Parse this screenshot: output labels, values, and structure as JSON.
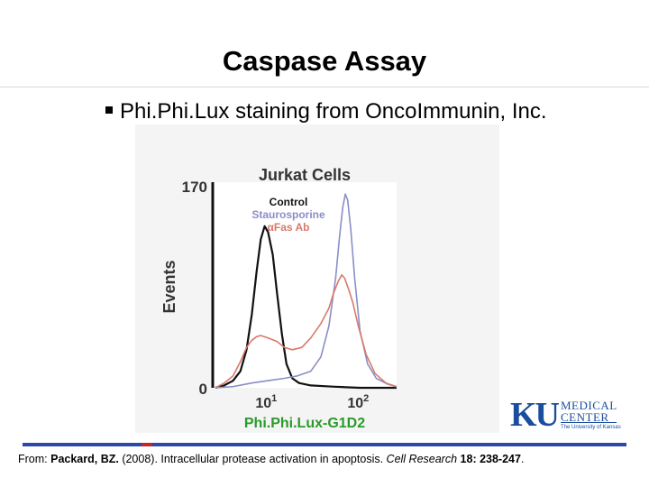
{
  "slide": {
    "title": "Caspase Assay",
    "bullet": "Phi.Phi.Lux staining from OncoImmunin, Inc."
  },
  "citation": {
    "prefix": "From: ",
    "author": "Packard, BZ.",
    "middle": " (2008). Intracellular protease activation in apoptosis. ",
    "journal": "Cell Research",
    "volume": " 18: 238-247",
    "end": "."
  },
  "logo": {
    "mark": "KU",
    "line1": "MEDICAL",
    "line2": "CENTER",
    "line3": "The University of Kansas"
  },
  "colors": {
    "control": "#111111",
    "staurosporine": "#8a8ec8",
    "fas": "#d77a6a",
    "xlabel": "#2a9a2a",
    "title_blue": "#2a49a8",
    "accent_red": "#c0262c"
  },
  "chart_data": {
    "type": "line",
    "title": "Jurkat Cells",
    "xlabel": "Phi.Phi.Lux-G1D2",
    "ylabel": "Events",
    "x_scale": "log",
    "xlim": [
      3,
      300
    ],
    "ylim": [
      0,
      170
    ],
    "y_ticks": [
      0,
      170
    ],
    "x_ticks": [
      {
        "value": 10,
        "base": "10",
        "exp": "1"
      },
      {
        "value": 100,
        "base": "10",
        "exp": "2"
      }
    ],
    "legend_placement": "top-center",
    "grid": false,
    "series": [
      {
        "name": "Control",
        "color_key": "control",
        "points": [
          [
            3.2,
            0
          ],
          [
            4,
            2
          ],
          [
            5,
            6
          ],
          [
            6,
            14
          ],
          [
            7,
            32
          ],
          [
            8,
            62
          ],
          [
            9,
            98
          ],
          [
            10,
            125
          ],
          [
            11,
            136
          ],
          [
            12,
            131
          ],
          [
            13.5,
            112
          ],
          [
            15,
            80
          ],
          [
            17,
            45
          ],
          [
            19,
            20
          ],
          [
            22,
            8
          ],
          [
            26,
            4
          ],
          [
            35,
            2
          ],
          [
            60,
            1
          ],
          [
            120,
            0
          ],
          [
            300,
            0
          ]
        ]
      },
      {
        "name": "Staurosporine",
        "color_key": "staurosporine",
        "points": [
          [
            3.2,
            0
          ],
          [
            5,
            1
          ],
          [
            8,
            4
          ],
          [
            12,
            6
          ],
          [
            18,
            8
          ],
          [
            25,
            10
          ],
          [
            35,
            14
          ],
          [
            45,
            26
          ],
          [
            55,
            52
          ],
          [
            65,
            92
          ],
          [
            72,
            128
          ],
          [
            78,
            152
          ],
          [
            83,
            163
          ],
          [
            88,
            158
          ],
          [
            95,
            134
          ],
          [
            105,
            92
          ],
          [
            120,
            48
          ],
          [
            145,
            20
          ],
          [
            180,
            8
          ],
          [
            240,
            3
          ],
          [
            300,
            1
          ]
        ]
      },
      {
        "name": "αFas Ab",
        "color_key": "fas",
        "points": [
          [
            3.2,
            0
          ],
          [
            4,
            4
          ],
          [
            5,
            10
          ],
          [
            6,
            22
          ],
          [
            7,
            34
          ],
          [
            8,
            40
          ],
          [
            9,
            43
          ],
          [
            10,
            44
          ],
          [
            12,
            42
          ],
          [
            15,
            39
          ],
          [
            18,
            34
          ],
          [
            22,
            32
          ],
          [
            28,
            34
          ],
          [
            35,
            42
          ],
          [
            45,
            54
          ],
          [
            55,
            67
          ],
          [
            62,
            80
          ],
          [
            70,
            90
          ],
          [
            76,
            95
          ],
          [
            82,
            92
          ],
          [
            90,
            83
          ],
          [
            100,
            72
          ],
          [
            115,
            52
          ],
          [
            140,
            28
          ],
          [
            175,
            12
          ],
          [
            230,
            4
          ],
          [
            300,
            1
          ]
        ]
      }
    ]
  }
}
